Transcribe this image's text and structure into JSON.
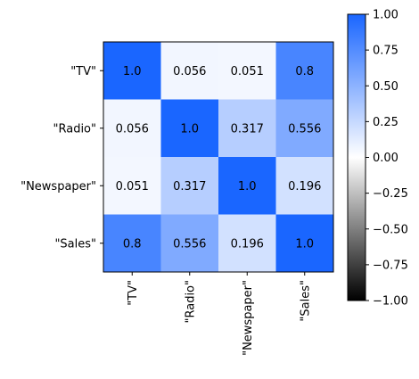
{
  "chart_data": {
    "type": "heatmap",
    "title": "",
    "xlabel": "",
    "ylabel": "",
    "rows": [
      "\"TV\"",
      "\"Radio\"",
      "\"Newspaper\"",
      "\"Sales\""
    ],
    "columns": [
      "\"TV\"",
      "\"Radio\"",
      "\"Newspaper\"",
      "\"Sales\""
    ],
    "values": [
      [
        1.0,
        0.056,
        0.051,
        0.8
      ],
      [
        0.056,
        1.0,
        0.317,
        0.556
      ],
      [
        0.051,
        0.317,
        1.0,
        0.196
      ],
      [
        0.8,
        0.556,
        0.196,
        1.0
      ]
    ],
    "value_labels": [
      [
        "1.0",
        "0.056",
        "0.051",
        "0.8"
      ],
      [
        "0.056",
        "1.0",
        "0.317",
        "0.556"
      ],
      [
        "0.051",
        "0.317",
        "1.0",
        "0.196"
      ],
      [
        "0.8",
        "0.556",
        "0.196",
        "1.0"
      ]
    ],
    "colorbar": {
      "range": [
        -1.0,
        1.0
      ],
      "tick_labels": [
        "1.00",
        "0.75",
        "0.50",
        "0.25",
        "0.00",
        "−0.25",
        "−0.50",
        "−0.75",
        "−1.00"
      ],
      "tick_values": [
        1.0,
        0.75,
        0.5,
        0.25,
        0.0,
        -0.25,
        -0.5,
        -0.75,
        -1.0
      ]
    },
    "colormap": {
      "low": "#000000",
      "mid": "#ffffff",
      "high": "#1a66ff"
    },
    "grid": false,
    "legend": "colorbar-right"
  }
}
